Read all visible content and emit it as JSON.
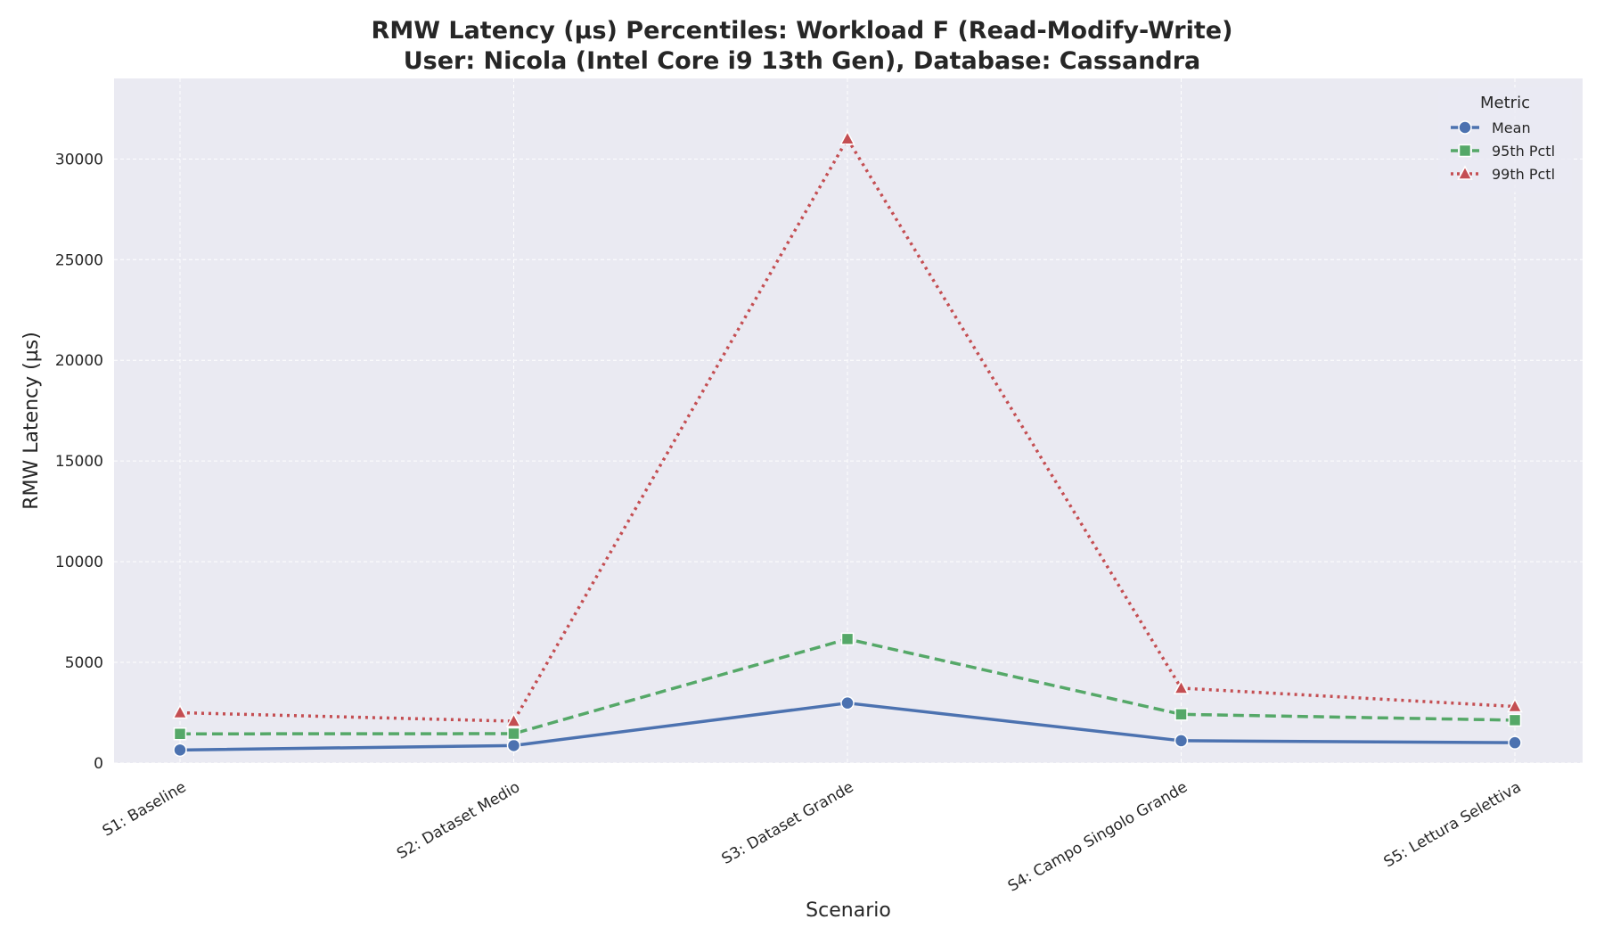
{
  "chart_data": {
    "type": "line",
    "title_lines": [
      "RMW Latency (µs) Percentiles: Workload F (Read-Modify-Write)",
      "User: Nicola (Intel Core i9 13th Gen), Database: Cassandra"
    ],
    "xlabel": "Scenario",
    "ylabel": "RMW Latency (µs)",
    "categories": [
      "S1: Baseline",
      "S2: Dataset Medio",
      "S3: Dataset Grande",
      "S4: Campo Singolo Grande",
      "S5: Lettura Selettiva"
    ],
    "ylim": [
      0,
      34000
    ],
    "yticks": [
      0,
      5000,
      10000,
      15000,
      20000,
      25000,
      30000
    ],
    "grid": true,
    "legend": {
      "title": "Metric",
      "placement": "top-right"
    },
    "series": [
      {
        "name": "Mean",
        "values": [
          650,
          870,
          2980,
          1110,
          1010
        ],
        "color": "#4c72b0",
        "marker": "circle",
        "dash": "solid"
      },
      {
        "name": "95th Pctl",
        "values": [
          1450,
          1460,
          6160,
          2420,
          2130
        ],
        "color": "#55a868",
        "marker": "square",
        "dash": "dashed"
      },
      {
        "name": "99th Pctl",
        "values": [
          2500,
          2080,
          31000,
          3720,
          2810
        ],
        "color": "#c44e52",
        "marker": "triangle",
        "dash": "dotted"
      }
    ]
  }
}
